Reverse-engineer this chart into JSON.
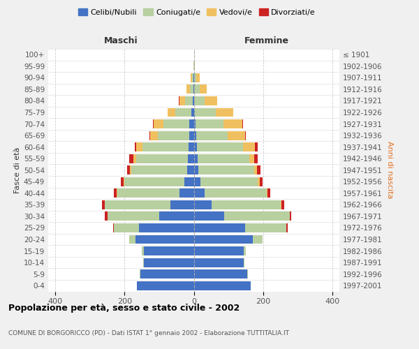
{
  "age_groups": [
    "0-4",
    "5-9",
    "10-14",
    "15-19",
    "20-24",
    "25-29",
    "30-34",
    "35-39",
    "40-44",
    "45-49",
    "50-54",
    "55-59",
    "60-64",
    "65-69",
    "70-74",
    "75-79",
    "80-84",
    "85-89",
    "90-94",
    "95-99",
    "100+"
  ],
  "birth_years": [
    "1997-2001",
    "1992-1996",
    "1987-1991",
    "1982-1986",
    "1977-1981",
    "1972-1976",
    "1967-1971",
    "1962-1966",
    "1957-1961",
    "1952-1956",
    "1947-1951",
    "1942-1946",
    "1937-1941",
    "1932-1936",
    "1927-1931",
    "1922-1926",
    "1917-1921",
    "1912-1916",
    "1907-1911",
    "1902-1906",
    "≤ 1901"
  ],
  "male": {
    "celibi": [
      165,
      155,
      145,
      145,
      168,
      158,
      100,
      68,
      42,
      28,
      20,
      18,
      16,
      14,
      13,
      8,
      4,
      2,
      1,
      0,
      0
    ],
    "coniugati": [
      0,
      1,
      2,
      5,
      18,
      72,
      148,
      188,
      178,
      172,
      160,
      148,
      132,
      90,
      75,
      45,
      22,
      10,
      4,
      1,
      0
    ],
    "vedovi": [
      0,
      0,
      0,
      0,
      0,
      0,
      1,
      1,
      2,
      3,
      5,
      8,
      18,
      22,
      28,
      22,
      16,
      10,
      5,
      1,
      0
    ],
    "divorziati": [
      0,
      0,
      0,
      0,
      1,
      3,
      8,
      8,
      8,
      8,
      8,
      12,
      5,
      2,
      1,
      1,
      1,
      0,
      0,
      0,
      0
    ]
  },
  "female": {
    "nubili": [
      165,
      155,
      145,
      145,
      170,
      148,
      88,
      52,
      32,
      20,
      14,
      12,
      10,
      8,
      5,
      3,
      2,
      2,
      1,
      0,
      0
    ],
    "coniugate": [
      0,
      1,
      2,
      6,
      28,
      118,
      188,
      198,
      178,
      165,
      160,
      148,
      132,
      90,
      80,
      60,
      30,
      15,
      6,
      2,
      0
    ],
    "vedove": [
      0,
      0,
      0,
      0,
      0,
      1,
      1,
      2,
      3,
      5,
      8,
      15,
      35,
      50,
      55,
      50,
      35,
      20,
      10,
      2,
      0
    ],
    "divorziate": [
      0,
      0,
      0,
      0,
      1,
      3,
      5,
      8,
      8,
      8,
      10,
      10,
      8,
      3,
      2,
      1,
      1,
      0,
      0,
      0,
      0
    ]
  },
  "colors": {
    "celibi": "#4472c4",
    "coniugati": "#b8cfa0",
    "vedovi": "#f0c060",
    "divorziati": "#cc2222"
  },
  "xlim": 420,
  "title": "Popolazione per età, sesso e stato civile - 2002",
  "subtitle": "COMUNE DI BORGORICCO (PD) - Dati ISTAT 1° gennaio 2002 - Elaborazione TUTTITALIA.IT",
  "ylabel_left": "Fasce di età",
  "ylabel_right": "Anni di nascita",
  "xlabel_left": "Maschi",
  "xlabel_right": "Femmine",
  "legend_labels": [
    "Celibi/Nubili",
    "Coniugati/e",
    "Vedovi/e",
    "Divorziati/e"
  ],
  "bg_color": "#f0f0f0",
  "plot_bg": "#ffffff"
}
